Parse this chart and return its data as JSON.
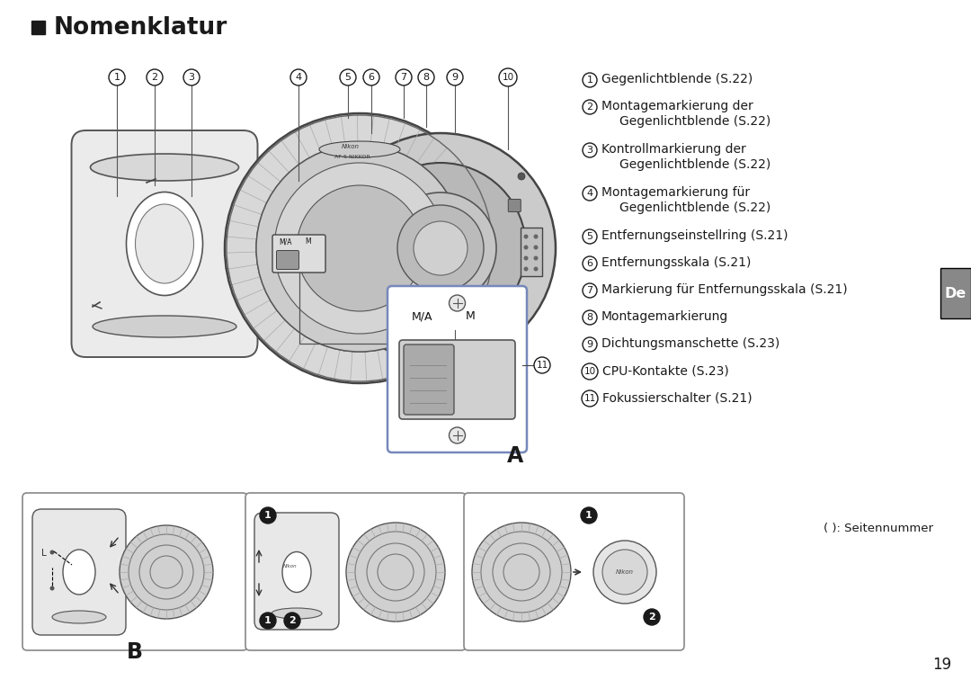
{
  "title": "Nomenklatur",
  "background_color": "#ffffff",
  "title_square_color": "#1a1a1a",
  "title_fontsize": 19,
  "de_tab_text": "De",
  "de_tab_bg": "#888888",
  "de_tab_text_color": "#ffffff",
  "numbered_items": [
    {
      "num": "1",
      "line1": "Gegenlichtblende (S.22)",
      "line2": null
    },
    {
      "num": "2",
      "line1": "Montagemarkierung der",
      "line2": "Gegenlichtblende (S.22)"
    },
    {
      "num": "3",
      "line1": "Kontrollmarkierung der",
      "line2": "Gegenlichtblende (S.22)"
    },
    {
      "num": "4",
      "line1": "Montagemarkierung für",
      "line2": "Gegenlichtblende (S.22)"
    },
    {
      "num": "5",
      "line1": "Entfernungseinstellring (S.21)",
      "line2": null
    },
    {
      "num": "6",
      "line1": "Entfernungsskala (S.21)",
      "line2": null
    },
    {
      "num": "7",
      "line1": "Markierung für Entfernungsskala (S.21)",
      "line2": null
    },
    {
      "num": "8",
      "line1": "Montagemarkierung",
      "line2": null
    },
    {
      "num": "9",
      "line1": "Dichtungsmanschette (S.23)",
      "line2": null
    },
    {
      "num": "10",
      "line1": "CPU-Kontakte (S.23)",
      "line2": null
    },
    {
      "num": "11",
      "line1": "Fokussierschalter (S.21)",
      "line2": null
    }
  ],
  "page_number": "19",
  "seitennummer_text": "( ): Seitennummer",
  "label_A": "A",
  "label_B": "B",
  "callout_nums": [
    "1",
    "2",
    "3",
    "4",
    "5",
    "6",
    "7",
    "8",
    "9",
    "10"
  ],
  "text_color": "#1a1a1a",
  "line_color": "#555555",
  "gray_light": "#e0e0e0",
  "gray_mid": "#b0b0b0",
  "gray_dark": "#777777"
}
